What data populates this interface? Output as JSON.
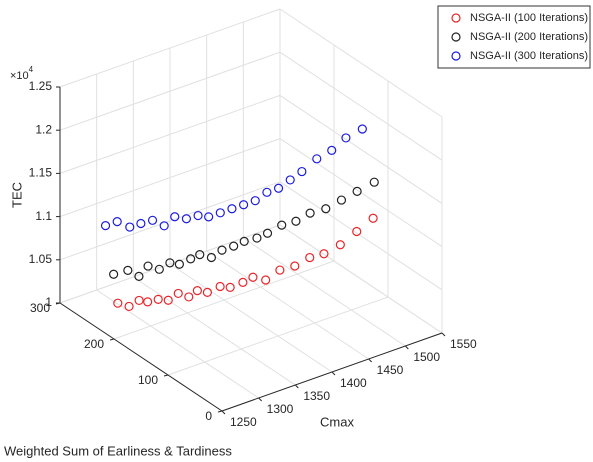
{
  "chart_data": {
    "type": "scatter3d",
    "x_label": "Cmax",
    "y_label": "Weighted Sum of Earliness & Tardiness",
    "z_label": "TEC",
    "z_exponent": "×10",
    "z_exponent_power": "4",
    "xlim": [
      1250,
      1550
    ],
    "xticks": [
      1250,
      1300,
      1350,
      1400,
      1450,
      1500,
      1550
    ],
    "ylim": [
      0,
      300
    ],
    "yticks": [
      0,
      100,
      200,
      300
    ],
    "zlim": [
      10000,
      12500
    ],
    "zticks": [
      {
        "value": 10000,
        "label": "1"
      },
      {
        "value": 10500,
        "label": "1.05"
      },
      {
        "value": 11000,
        "label": "1.1"
      },
      {
        "value": 11500,
        "label": "1.15"
      },
      {
        "value": 12000,
        "label": "1.2"
      },
      {
        "value": 12500,
        "label": "1.25"
      }
    ],
    "grid": true,
    "legend": "top-right",
    "series": [
      {
        "name": "NSGA-II (100 Iterations)",
        "color": "#e8262a",
        "x": [
          1292,
          1300,
          1310,
          1318,
          1325,
          1335,
          1345,
          1352,
          1360,
          1370,
          1380,
          1390,
          1400,
          1410,
          1420,
          1432,
          1445,
          1458,
          1470,
          1485,
          1500,
          1515
        ],
        "y": [
          250,
          240,
          235,
          230,
          220,
          215,
          210,
          200,
          195,
          190,
          180,
          175,
          165,
          160,
          150,
          140,
          130,
          120,
          110,
          100,
          90,
          80
        ],
        "values": [
          10080,
          10060,
          10120,
          10100,
          10150,
          10130,
          10200,
          10180,
          10250,
          10220,
          10300,
          10280,
          10350,
          10400,
          10380,
          10500,
          10550,
          10650,
          10700,
          10800,
          10950,
          11100
        ]
      },
      {
        "name": "NSGA-II (200 Iterations)",
        "color": "#222222",
        "x": [
          1290,
          1302,
          1312,
          1320,
          1328,
          1338,
          1348,
          1356,
          1364,
          1374,
          1384,
          1394,
          1404,
          1414,
          1424,
          1436,
          1448,
          1460,
          1474,
          1488,
          1502,
          1518
        ],
        "y": [
          255,
          245,
          238,
          232,
          222,
          216,
          212,
          202,
          196,
          188,
          182,
          174,
          168,
          158,
          152,
          142,
          132,
          122,
          112,
          102,
          92,
          82
        ],
        "values": [
          10400,
          10450,
          10380,
          10500,
          10480,
          10550,
          10520,
          10600,
          10650,
          10620,
          10700,
          10750,
          10800,
          10850,
          10900,
          11000,
          11050,
          11150,
          11200,
          11300,
          11400,
          11500
        ]
      },
      {
        "name": "NSGA-II (300 Iterations)",
        "color": "#1c1ce0",
        "x": [
          1290,
          1300,
          1312,
          1322,
          1332,
          1342,
          1352,
          1362,
          1372,
          1382,
          1392,
          1402,
          1412,
          1422,
          1432,
          1442,
          1452,
          1462,
          1475,
          1488,
          1500,
          1515
        ],
        "y": [
          270,
          262,
          255,
          248,
          240,
          232,
          226,
          218,
          210,
          204,
          196,
          188,
          180,
          172,
          164,
          156,
          148,
          140,
          130,
          120,
          110,
          100
        ],
        "values": [
          10900,
          10950,
          10880,
          10920,
          10960,
          10900,
          11000,
          10980,
          11020,
          11000,
          11050,
          11100,
          11150,
          11200,
          11300,
          11350,
          11450,
          11550,
          11700,
          11800,
          11950,
          12050
        ]
      }
    ]
  }
}
